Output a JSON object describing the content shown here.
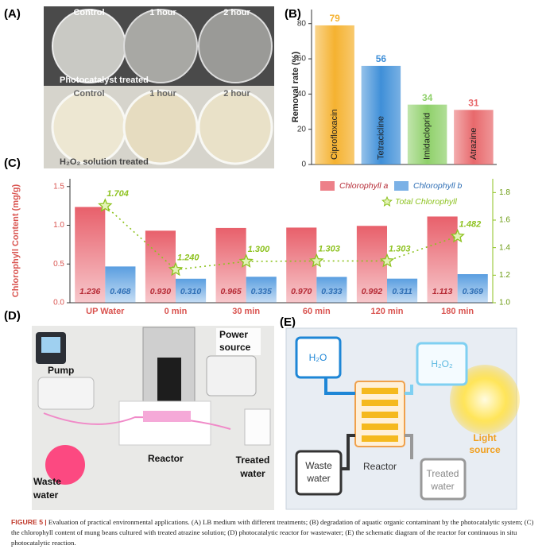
{
  "panel_labels": [
    "(A)",
    "(B)",
    "(C)",
    "(D)",
    "(E)"
  ],
  "panel_a": {
    "rows": [
      {
        "labels": [
          "Control",
          "1 hour",
          "2 hour"
        ],
        "caption": "Photocatalyst treated"
      },
      {
        "labels": [
          "Control",
          "1 hour",
          "2 hour"
        ],
        "caption": "H₂O₂ solution treated"
      }
    ]
  },
  "chart_data": [
    {
      "type": "bar",
      "ylabel": "Removal rate (%)",
      "categories": [
        "Ciprofloxacin",
        "Tetracicline",
        "Imidacloprid",
        "Atrazine"
      ],
      "values": [
        79,
        56,
        34,
        31
      ],
      "colors": [
        "#f5b230",
        "#3f8fd8",
        "#8fd06a",
        "#e8696c"
      ],
      "ylim": [
        0,
        88
      ],
      "yticks": [
        0,
        20,
        40,
        60,
        80
      ]
    },
    {
      "type": "bar",
      "ylabel": "Chlorophyll Content (mg/g)",
      "categories": [
        "UP Water",
        "0 min",
        "30 min",
        "60 min",
        "120 min",
        "180 min"
      ],
      "series": [
        {
          "name": "Chlorophyll a",
          "color": "#e8606b",
          "values": [
            1.236,
            0.93,
            0.965,
            0.97,
            0.992,
            1.113
          ],
          "value_labels": [
            "1.236",
            "0.930",
            "0.965",
            "0.970",
            "0.992",
            "1.113"
          ]
        },
        {
          "name": "Chlorophyll b",
          "color": "#5a9ee0",
          "values": [
            0.468,
            0.31,
            0.335,
            0.333,
            0.311,
            0.369
          ],
          "value_labels": [
            "0.468",
            "0.310",
            "0.335",
            "0.333",
            "0.311",
            "0.369"
          ]
        },
        {
          "name": "Total Chlorophyll",
          "type": "line",
          "axis": "y2",
          "color": "#8dc21f",
          "values": [
            1.704,
            1.24,
            1.3,
            1.303,
            1.303,
            1.482
          ],
          "value_labels": [
            "1.704",
            "1.240",
            "1.300",
            "1.303",
            "1.303",
            "1.482"
          ]
        }
      ],
      "ylim": [
        0,
        1.6
      ],
      "yticks": [
        {
          "value": 0,
          "label": "0.0"
        },
        0.5,
        {
          "value": 1,
          "label": "1.0"
        },
        1.5
      ],
      "y2lim": [
        1.0,
        1.9
      ],
      "y2ticks": [
        {
          "value": 1,
          "label": "1.0"
        },
        1.2,
        1.4,
        1.6,
        1.8
      ],
      "legend": "top-right"
    }
  ],
  "panel_d": {
    "pump": "Pump",
    "power_source": [
      "Power",
      "source"
    ],
    "reactor": "Reactor",
    "treated_water": [
      "Treated",
      "water"
    ],
    "waste_water": [
      "Waste",
      "water"
    ]
  },
  "panel_e": {
    "h2o": "H₂O",
    "h2o2": "H₂O₂",
    "reactor": "Reactor",
    "waste_water": [
      "Waste",
      "water"
    ],
    "treated_water": [
      "Treated",
      "water"
    ],
    "light_source": [
      "Light",
      "source"
    ]
  },
  "caption": {
    "label": "FIGURE 5",
    "separator": "|",
    "text": "Evaluation of practical environmental applications. (A) LB medium with different treatments; (B) degradation of aquatic organic contaminant by the photocatalytic system; (C) the chlorophyll content of mung beans cultured with treated atrazine solution; (D) photocatalytic reactor for wastewater; (E) the schematic diagram of the reactor for continuous in situ photocatalytic reaction."
  }
}
